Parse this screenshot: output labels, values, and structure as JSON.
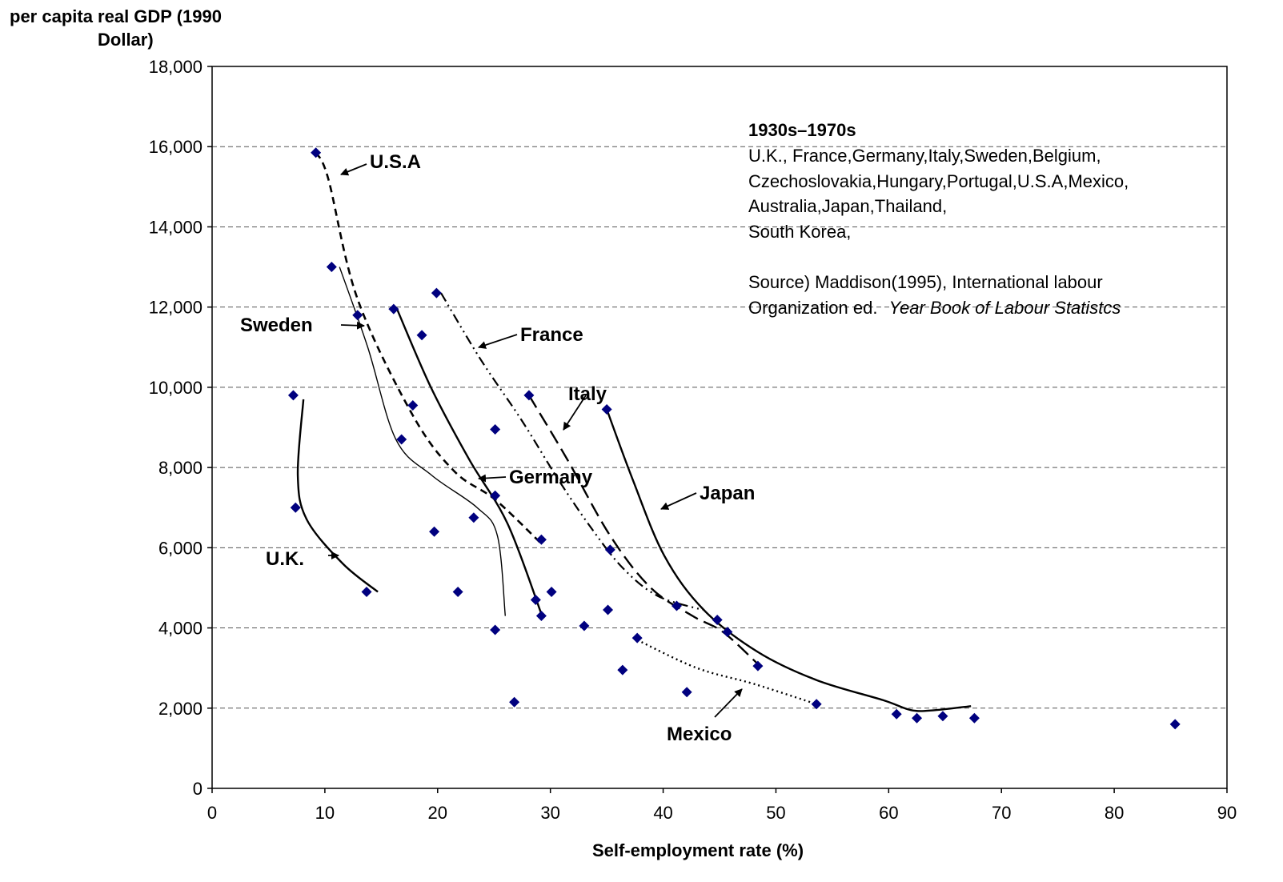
{
  "chart_data": {
    "type": "scatter",
    "ylabel_line1": "per capita real GDP (1990",
    "ylabel_line2": "Dollar)",
    "xlabel": "Self-employment rate (%)",
    "xlim": [
      0,
      90
    ],
    "ylim": [
      0,
      18000
    ],
    "xticks": [
      "0",
      "10",
      "20",
      "30",
      "40",
      "50",
      "60",
      "70",
      "80",
      "90"
    ],
    "yticks": [
      "0",
      "2,000",
      "4,000",
      "6,000",
      "8,000",
      "10,000",
      "12,000",
      "14,000",
      "16,000",
      "18,000"
    ],
    "grid": "horizontal dashed",
    "marker_color": "#00007f",
    "points": [
      [
        9.2,
        15850
      ],
      [
        10.6,
        13000
      ],
      [
        12.9,
        11800
      ],
      [
        16.1,
        11950
      ],
      [
        19.9,
        12350
      ],
      [
        18.6,
        11300
      ],
      [
        17.8,
        9550
      ],
      [
        16.8,
        8700
      ],
      [
        7.2,
        9800
      ],
      [
        7.4,
        7000
      ],
      [
        13.7,
        4900
      ],
      [
        25.1,
        8950
      ],
      [
        25.1,
        7300
      ],
      [
        23.2,
        6750
      ],
      [
        19.7,
        6400
      ],
      [
        21.8,
        4900
      ],
      [
        25.1,
        3950
      ],
      [
        26.8,
        2150
      ],
      [
        28.1,
        9800
      ],
      [
        29.2,
        6200
      ],
      [
        28.7,
        4700
      ],
      [
        29.2,
        4300
      ],
      [
        30.1,
        4900
      ],
      [
        33.0,
        4050
      ],
      [
        35.0,
        9450
      ],
      [
        35.3,
        5950
      ],
      [
        35.1,
        4450
      ],
      [
        36.4,
        2950
      ],
      [
        37.7,
        3750
      ],
      [
        41.2,
        4550
      ],
      [
        42.1,
        2400
      ],
      [
        44.8,
        4200
      ],
      [
        45.7,
        3900
      ],
      [
        48.4,
        3050
      ],
      [
        53.6,
        2100
      ],
      [
        60.7,
        1850
      ],
      [
        62.5,
        1750
      ],
      [
        64.8,
        1800
      ],
      [
        67.6,
        1750
      ],
      [
        85.4,
        1600
      ]
    ],
    "series": [
      {
        "name": "U.S.A",
        "style": "dashed",
        "points": [
          [
            9.2,
            15850
          ],
          [
            10.3,
            15200
          ],
          [
            12.9,
            12200
          ],
          [
            17.8,
            9300
          ],
          [
            21.5,
            7900
          ],
          [
            25.1,
            7200
          ],
          [
            29.2,
            6100
          ]
        ]
      },
      {
        "name": "Sweden",
        "style": "thin",
        "points": [
          [
            11.3,
            13000
          ],
          [
            13.8,
            11000
          ],
          [
            16.3,
            8700
          ],
          [
            19.5,
            7800
          ],
          [
            23.5,
            7000
          ],
          [
            25.3,
            6300
          ],
          [
            26,
            4300
          ]
        ]
      },
      {
        "name": "Germany",
        "style": "solid",
        "points": [
          [
            16.4,
            11950
          ],
          [
            19.4,
            10000
          ],
          [
            22.8,
            8200
          ],
          [
            26.2,
            6600
          ],
          [
            29.2,
            4350
          ]
        ]
      },
      {
        "name": "France",
        "style": "dashdotdot",
        "points": [
          [
            20.3,
            12350
          ],
          [
            23.8,
            10700
          ],
          [
            27.4,
            9200
          ],
          [
            30.7,
            7700
          ],
          [
            33.6,
            6500
          ],
          [
            36.4,
            5500
          ],
          [
            39.5,
            4800
          ],
          [
            43.5,
            4450
          ]
        ]
      },
      {
        "name": "Italy",
        "style": "longdash",
        "points": [
          [
            28.1,
            9800
          ],
          [
            31.5,
            8200
          ],
          [
            35.3,
            6300
          ],
          [
            38.9,
            5000
          ],
          [
            42.6,
            4300
          ],
          [
            45.3,
            3900
          ],
          [
            48.4,
            3100
          ]
        ]
      },
      {
        "name": "Japan",
        "style": "solid",
        "points": [
          [
            35,
            9450
          ],
          [
            37.3,
            7700
          ],
          [
            40.1,
            5800
          ],
          [
            43.6,
            4450
          ],
          [
            48.4,
            3400
          ],
          [
            53.6,
            2700
          ],
          [
            59.5,
            2200
          ],
          [
            62,
            1950
          ],
          [
            64.1,
            1950
          ],
          [
            67.3,
            2050
          ]
        ]
      },
      {
        "name": "U.K.",
        "style": "solid",
        "points": [
          [
            8.1,
            9700
          ],
          [
            7.6,
            7800
          ],
          [
            8.4,
            6700
          ],
          [
            11.6,
            5600
          ],
          [
            14.7,
            4900
          ]
        ]
      },
      {
        "name": "Mexico",
        "style": "dotted",
        "points": [
          [
            37.7,
            3700
          ],
          [
            43,
            3000
          ],
          [
            48.1,
            2600
          ],
          [
            53.6,
            2100
          ]
        ]
      }
    ],
    "annotations": [
      {
        "label": "U.S.A"
      },
      {
        "label": "Sweden"
      },
      {
        "label": "France"
      },
      {
        "label": "Italy"
      },
      {
        "label": "Germany"
      },
      {
        "label": "Japan"
      },
      {
        "label": "U.K."
      },
      {
        "label": "Mexico"
      }
    ],
    "note_title": "1930s–1970s",
    "note_lines": [
      "U.K., France,Germany,Italy,Sweden,Belgium,",
      "Czechoslovakia,Hungary,Portugal,U.S.A,Mexico,",
      "Australia,Japan,Thailand,",
      "South Korea,"
    ],
    "source_line1": "Source) Maddison(1995), International labour",
    "source_line2_plain": "Organization ed.",
    "source_line2_italic": "Year Book of Labour Statistcs"
  }
}
